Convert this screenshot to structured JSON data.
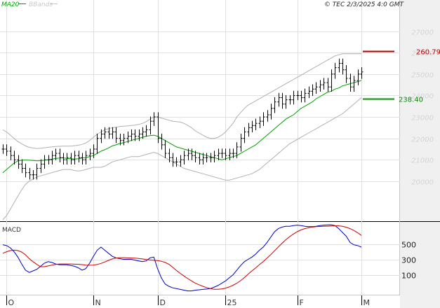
{
  "header": {
    "legend_ma": "MA20",
    "legend_bb": "BBands",
    "timestamp": "© TEC 2/3/2025 4:0 GMT"
  },
  "colors": {
    "ma": "#00a000",
    "bbands": "#b0b0b0",
    "price": "#000000",
    "macd": "#0000cc",
    "signal": "#cc0000",
    "resistance": "#b00000",
    "support": "#009000",
    "grid": "#e0e0e0",
    "right_panel": "#f0f0f0"
  },
  "chart_data": [
    {
      "type": "line",
      "subtype": "ohlc",
      "ylim": [
        18200,
        28000
      ],
      "yticks": [
        20000,
        21000,
        22000,
        23000,
        24000,
        25000,
        26000,
        27000
      ],
      "ytick_labels": [
        "20000",
        "21000",
        "22000",
        "23000",
        "24000",
        "25000",
        "26000",
        "27000"
      ],
      "x_labels": [
        {
          "label": "O",
          "index": 1
        },
        {
          "label": "N",
          "index": 24
        },
        {
          "label": "D",
          "index": 41
        },
        {
          "label": "25",
          "index": 59
        },
        {
          "label": "F",
          "index": 78
        },
        {
          "label": "M",
          "index": 95
        }
      ],
      "closes": [
        21500,
        21400,
        21200,
        21000,
        20800,
        20600,
        20400,
        20300,
        20300,
        20600,
        20800,
        21000,
        21000,
        21200,
        21300,
        21100,
        21000,
        21100,
        21000,
        21200,
        21100,
        21000,
        21200,
        21300,
        21500,
        22000,
        22200,
        22300,
        22200,
        22300,
        22000,
        21900,
        22000,
        22100,
        22200,
        22100,
        22200,
        22300,
        22400,
        22800,
        23000,
        22000,
        21700,
        21300,
        21100,
        20900,
        20900,
        21000,
        21200,
        21300,
        21200,
        21100,
        21000,
        21100,
        21100,
        21100,
        21200,
        21300,
        21300,
        21200,
        21300,
        21300,
        21600,
        22000,
        22300,
        22500,
        22600,
        22700,
        22800,
        23000,
        23100,
        23400,
        23700,
        23900,
        23600,
        23800,
        23800,
        24000,
        24000,
        23900,
        24100,
        24200,
        24300,
        24400,
        24500,
        24600,
        24400,
        25000,
        25300,
        25500,
        25200,
        24800,
        24400,
        24700,
        25000,
        25100
      ],
      "ma20": [
        20400,
        20550,
        20700,
        20850,
        20950,
        20980,
        20990,
        20980,
        20970,
        20950,
        20960,
        20980,
        21000,
        21030,
        21060,
        21080,
        21090,
        21060,
        21050,
        21040,
        21050,
        21080,
        21100,
        21150,
        21200,
        21300,
        21400,
        21470,
        21550,
        21650,
        21700,
        21760,
        21800,
        21850,
        21900,
        21950,
        22000,
        22050,
        22100,
        22130,
        22150,
        22100,
        22000,
        21900,
        21800,
        21700,
        21600,
        21550,
        21500,
        21450,
        21400,
        21350,
        21300,
        21250,
        21200,
        21150,
        21100,
        21050,
        21000,
        21050,
        21100,
        21150,
        21200,
        21300,
        21400,
        21500,
        21600,
        21700,
        21850,
        22000,
        22150,
        22300,
        22450,
        22600,
        22750,
        22900,
        23000,
        23100,
        23250,
        23400,
        23500,
        23600,
        23700,
        23850,
        23950,
        24050,
        24150,
        24200,
        24300,
        24350,
        24450,
        24500,
        24550,
        24600,
        24650,
        24700
      ],
      "bb_upper": [
        22400,
        22300,
        22150,
        22000,
        21850,
        21750,
        21650,
        21580,
        21550,
        21530,
        21540,
        21560,
        21580,
        21600,
        21620,
        21630,
        21640,
        21640,
        21640,
        21660,
        21680,
        21720,
        21780,
        21900,
        22050,
        22200,
        22300,
        22400,
        22450,
        22500,
        22520,
        22550,
        22570,
        22580,
        22600,
        22620,
        22650,
        22700,
        22780,
        22900,
        23000,
        23000,
        22950,
        22900,
        22850,
        22800,
        22780,
        22760,
        22700,
        22600,
        22500,
        22350,
        22250,
        22150,
        22050,
        22000,
        22000,
        22050,
        22150,
        22300,
        22500,
        22700,
        23000,
        23200,
        23400,
        23550,
        23650,
        23750,
        23850,
        23950,
        24050,
        24150,
        24250,
        24350,
        24450,
        24550,
        24650,
        24750,
        24850,
        24950,
        25050,
        25150,
        25250,
        25350,
        25450,
        25550,
        25650,
        25750,
        25850,
        25900,
        25950,
        25950,
        25950,
        25950,
        25950,
        25950
      ],
      "bb_lower": [
        18200,
        18400,
        18700,
        19000,
        19300,
        19600,
        19850,
        20000,
        20100,
        20200,
        20250,
        20300,
        20350,
        20400,
        20450,
        20500,
        20550,
        20550,
        20550,
        20500,
        20480,
        20500,
        20550,
        20600,
        20650,
        20650,
        20650,
        20700,
        20800,
        20900,
        20950,
        21000,
        21050,
        21100,
        21150,
        21150,
        21150,
        21200,
        21250,
        21300,
        21350,
        21300,
        21200,
        21100,
        21000,
        20900,
        20800,
        20700,
        20600,
        20550,
        20500,
        20450,
        20400,
        20350,
        20300,
        20250,
        20200,
        20150,
        20100,
        20050,
        20050,
        20100,
        20150,
        20200,
        20250,
        20300,
        20350,
        20450,
        20550,
        20700,
        20850,
        21000,
        21150,
        21300,
        21450,
        21600,
        21750,
        21850,
        21950,
        22050,
        22150,
        22250,
        22350,
        22450,
        22550,
        22650,
        22750,
        22850,
        22950,
        23050,
        23150,
        23300,
        23450,
        23600,
        23750,
        23900
      ],
      "hlines": [
        {
          "label": "260.79",
          "value": 26080,
          "role": "resistance"
        },
        {
          "label": "238.40",
          "value": 23840,
          "role": "support"
        }
      ]
    },
    {
      "type": "line",
      "title": "MACD",
      "ylim": [
        -150,
        760
      ],
      "yticks": [
        100,
        300,
        500
      ],
      "ytick_labels": [
        "100",
        "300",
        "500"
      ],
      "series": [
        {
          "name": "macd",
          "values": [
            490,
            480,
            450,
            400,
            330,
            240,
            160,
            130,
            150,
            170,
            210,
            250,
            270,
            260,
            240,
            230,
            230,
            230,
            220,
            210,
            190,
            160,
            180,
            250,
            340,
            420,
            460,
            420,
            380,
            340,
            320,
            310,
            300,
            300,
            300,
            290,
            280,
            270,
            280,
            320,
            330,
            180,
            60,
            -20,
            -50,
            -70,
            -80,
            -90,
            -100,
            -110,
            -110,
            -100,
            -95,
            -90,
            -85,
            -80,
            -60,
            -40,
            -10,
            20,
            60,
            100,
            160,
            220,
            270,
            300,
            330,
            370,
            420,
            460,
            520,
            590,
            660,
            700,
            720,
            730,
            730,
            740,
            745,
            740,
            730,
            725,
            725,
            730,
            740,
            745,
            748,
            750,
            740,
            700,
            650,
            600,
            520,
            490,
            480,
            460
          ]
        },
        {
          "name": "signal",
          "values": [
            380,
            400,
            415,
            420,
            415,
            395,
            360,
            310,
            270,
            235,
            205,
            205,
            215,
            225,
            235,
            240,
            240,
            240,
            240,
            238,
            236,
            232,
            226,
            224,
            226,
            234,
            248,
            266,
            288,
            306,
            318,
            322,
            322,
            320,
            318,
            316,
            312,
            306,
            298,
            292,
            288,
            284,
            276,
            260,
            236,
            198,
            156,
            118,
            84,
            50,
            20,
            -10,
            -30,
            -50,
            -66,
            -80,
            -88,
            -88,
            -84,
            -74,
            -58,
            -36,
            -10,
            24,
            64,
            108,
            150,
            190,
            232,
            272,
            316,
            362,
            412,
            462,
            510,
            556,
            596,
            630,
            660,
            684,
            700,
            712,
            720,
            726,
            728,
            730,
            732,
            734,
            736,
            736,
            730,
            718,
            700,
            676,
            646,
            612
          ]
        }
      ]
    }
  ]
}
